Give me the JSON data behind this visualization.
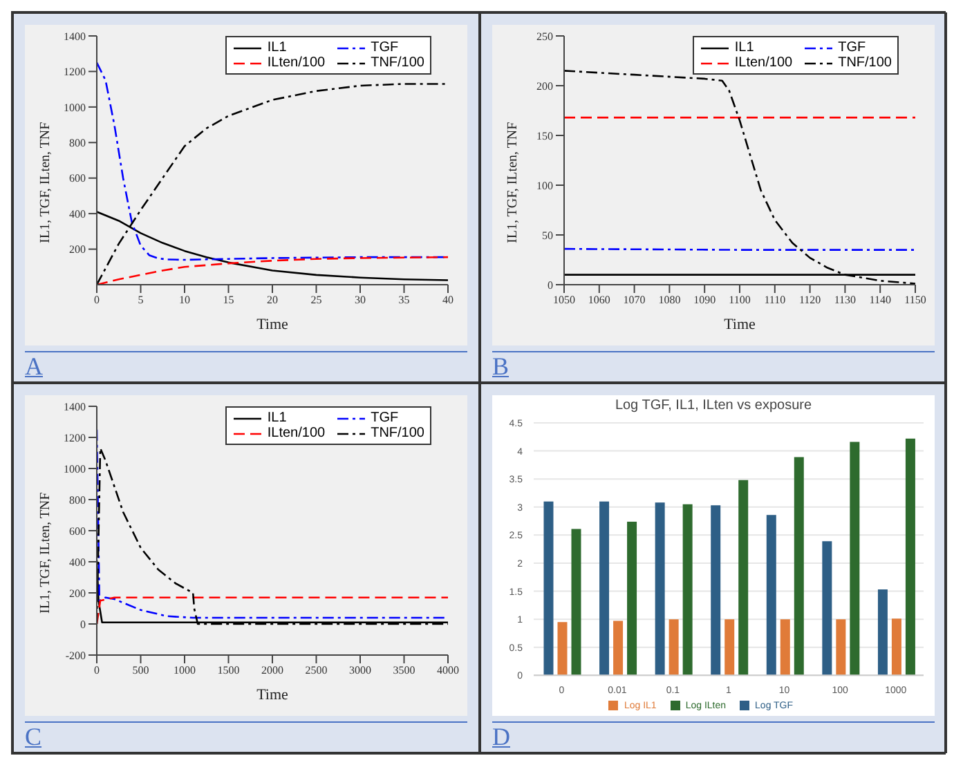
{
  "chart_data": [
    {
      "type": "line",
      "xlabel": "Time",
      "ylabel": "IL1,  TGF, ILten, TNF",
      "xlim": [
        0,
        40
      ],
      "xticks": [
        0,
        5,
        10,
        15,
        20,
        25,
        30,
        35,
        40
      ],
      "ylim": [
        0,
        1400
      ],
      "yticks": [
        200,
        400,
        600,
        800,
        1000,
        1200,
        1400
      ],
      "grid": false,
      "legend": "top right",
      "marker": "none",
      "annotations": [
        "A"
      ],
      "series": [
        {
          "name": "IL1",
          "color": "#000000",
          "line_style": "solid",
          "x": [
            0,
            2.5,
            5,
            7.5,
            10,
            12.5,
            15,
            20,
            25,
            30,
            35,
            40
          ],
          "values": [
            410,
            360,
            290,
            235,
            190,
            155,
            125,
            80,
            55,
            40,
            30,
            25
          ]
        },
        {
          "name": "TGF",
          "color": "#0000ff",
          "line_style": "dashdot",
          "x": [
            0,
            1,
            2,
            3,
            4,
            5,
            6,
            7,
            8,
            10,
            15,
            20,
            30,
            40
          ],
          "values": [
            1250,
            1150,
            900,
            600,
            350,
            220,
            165,
            148,
            142,
            140,
            145,
            150,
            155,
            155
          ]
        },
        {
          "name": "ILten/100",
          "color": "#ff0000",
          "line_style": "dashed",
          "x": [
            0,
            2.5,
            5,
            7.5,
            10,
            15,
            20,
            25,
            30,
            40
          ],
          "values": [
            0,
            30,
            55,
            80,
            100,
            120,
            135,
            145,
            150,
            155
          ]
        },
        {
          "name": "TNF/100",
          "color": "#000000",
          "line_style": "dashdot",
          "x": [
            0,
            2.5,
            5,
            7.5,
            10,
            12.5,
            15,
            20,
            25,
            30,
            35,
            40
          ],
          "values": [
            0,
            230,
            420,
            600,
            780,
            880,
            950,
            1040,
            1090,
            1120,
            1130,
            1130
          ]
        }
      ]
    },
    {
      "type": "line",
      "xlabel": "Time",
      "ylabel": "IL1,  TGF, ILten, TNF",
      "xlim": [
        1050,
        1150
      ],
      "xticks": [
        1050,
        1060,
        1070,
        1080,
        1090,
        1100,
        1110,
        1120,
        1130,
        1140,
        1150
      ],
      "ylim": [
        0,
        250
      ],
      "yticks": [
        0,
        50,
        100,
        150,
        200,
        250
      ],
      "grid": false,
      "legend": "top right",
      "marker": "none",
      "annotations": [
        "B"
      ],
      "series": [
        {
          "name": "IL1",
          "color": "#000000",
          "line_style": "solid",
          "x": [
            1050,
            1150
          ],
          "values": [
            10,
            10
          ]
        },
        {
          "name": "TGF",
          "color": "#0000ff",
          "line_style": "dashdot",
          "x": [
            1050,
            1100,
            1150
          ],
          "values": [
            36,
            35,
            35
          ]
        },
        {
          "name": "ILten/100",
          "color": "#ff0000",
          "line_style": "dashed",
          "x": [
            1050,
            1150
          ],
          "values": [
            168,
            168
          ]
        },
        {
          "name": "TNF/100",
          "color": "#000000",
          "line_style": "dashdot",
          "x": [
            1050,
            1070,
            1090,
            1095,
            1097,
            1100,
            1103,
            1106,
            1110,
            1115,
            1120,
            1125,
            1130,
            1140,
            1150
          ],
          "values": [
            215,
            211,
            207,
            205,
            195,
            165,
            130,
            95,
            65,
            42,
            27,
            17,
            10,
            4,
            1
          ]
        }
      ]
    },
    {
      "type": "line",
      "xlabel": "Time",
      "ylabel": "IL1,  TGF, ILten, TNF",
      "xlim": [
        0,
        4000
      ],
      "xticks": [
        0,
        500,
        1000,
        1500,
        2000,
        2500,
        3000,
        3500,
        4000
      ],
      "ylim": [
        -200,
        1400
      ],
      "yticks": [
        -200,
        0,
        200,
        400,
        600,
        800,
        1000,
        1200,
        1400
      ],
      "grid": false,
      "legend": "top right",
      "marker": "none",
      "annotations": [
        "C"
      ],
      "series": [
        {
          "name": "IL1",
          "color": "#000000",
          "line_style": "solid",
          "x": [
            0,
            20,
            60,
            4000
          ],
          "values": [
            410,
            150,
            10,
            10
          ]
        },
        {
          "name": "TGF",
          "color": "#0000ff",
          "line_style": "dashdot",
          "x": [
            0,
            30,
            100,
            200,
            500,
            800,
            1100,
            4000
          ],
          "values": [
            1250,
            150,
            170,
            160,
            90,
            50,
            40,
            40
          ]
        },
        {
          "name": "ILten/100",
          "color": "#ff0000",
          "line_style": "dashed",
          "x": [
            0,
            40,
            200,
            4000
          ],
          "values": [
            0,
            150,
            170,
            170
          ]
        },
        {
          "name": "TNF/100",
          "color": "#000000",
          "line_style": "dashdot",
          "x": [
            0,
            40,
            100,
            300,
            500,
            700,
            900,
            1096,
            1110,
            1150,
            4000
          ],
          "values": [
            0,
            1130,
            1050,
            720,
            490,
            350,
            260,
            200,
            100,
            0,
            0
          ]
        }
      ]
    },
    {
      "type": "bar",
      "title": "Log TGF, IL1, ILten vs exposure",
      "categories": [
        "0",
        "0.01",
        "0.1",
        "1",
        "10",
        "100",
        "1000"
      ],
      "ylim": [
        0,
        4.5
      ],
      "yticks": [
        0,
        0.5,
        1,
        1.5,
        2,
        2.5,
        3,
        3.5,
        4,
        4.5
      ],
      "grid": "y",
      "legend": "bottom",
      "annotations": [
        "D"
      ],
      "series": [
        {
          "name": "Log TGF",
          "color": "#2e5f86",
          "values": [
            3.1,
            3.1,
            3.08,
            3.03,
            2.86,
            2.39,
            1.53
          ]
        },
        {
          "name": "Log IL1",
          "color": "#e07b39",
          "values": [
            0.95,
            0.97,
            1.0,
            1.0,
            1.0,
            1.0,
            1.01
          ]
        },
        {
          "name": "Log ILten",
          "color": "#2e6b2e",
          "values": [
            2.61,
            2.74,
            3.05,
            3.48,
            3.89,
            4.16,
            4.22
          ]
        }
      ]
    }
  ]
}
